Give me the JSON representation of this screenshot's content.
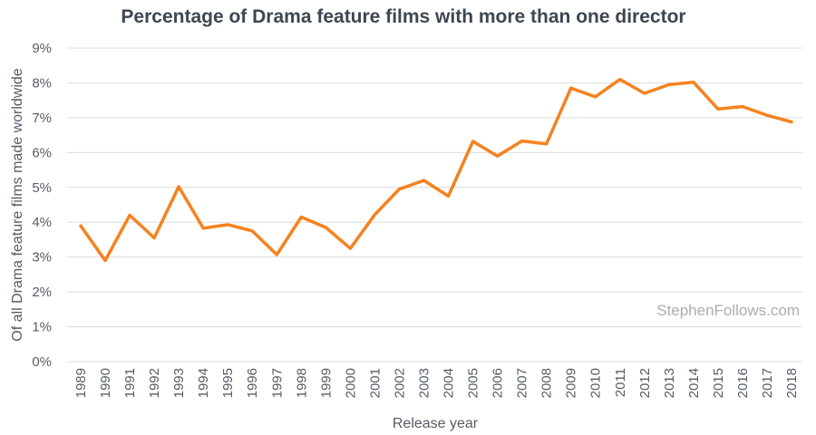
{
  "chart_data": {
    "type": "line",
    "title": "Percentage of Drama feature films with more than one director",
    "xlabel": "Release year",
    "ylabel": "Of all Drama feature films made worldwide",
    "watermark": "StephenFollows.com",
    "ylim": [
      0,
      9
    ],
    "yticks": [
      "0%",
      "1%",
      "2%",
      "3%",
      "4%",
      "5%",
      "6%",
      "7%",
      "8%",
      "9%"
    ],
    "grid": true,
    "line_color": "#f5821f",
    "categories": [
      "1989",
      "1990",
      "1991",
      "1992",
      "1993",
      "1994",
      "1995",
      "1996",
      "1997",
      "1998",
      "1999",
      "2000",
      "2001",
      "2002",
      "2003",
      "2004",
      "2005",
      "2006",
      "2007",
      "2008",
      "2009",
      "2010",
      "2011",
      "2012",
      "2013",
      "2014",
      "2015",
      "2016",
      "2017",
      "2018"
    ],
    "series": [
      {
        "name": "Drama",
        "values": [
          3.9,
          2.9,
          4.2,
          3.55,
          5.02,
          3.83,
          3.93,
          3.75,
          3.07,
          4.15,
          3.85,
          3.25,
          4.22,
          4.95,
          5.2,
          4.75,
          6.32,
          5.9,
          6.33,
          6.25,
          7.85,
          7.6,
          8.1,
          7.7,
          7.95,
          8.02,
          7.25,
          7.32,
          7.07,
          6.88
        ]
      }
    ]
  }
}
